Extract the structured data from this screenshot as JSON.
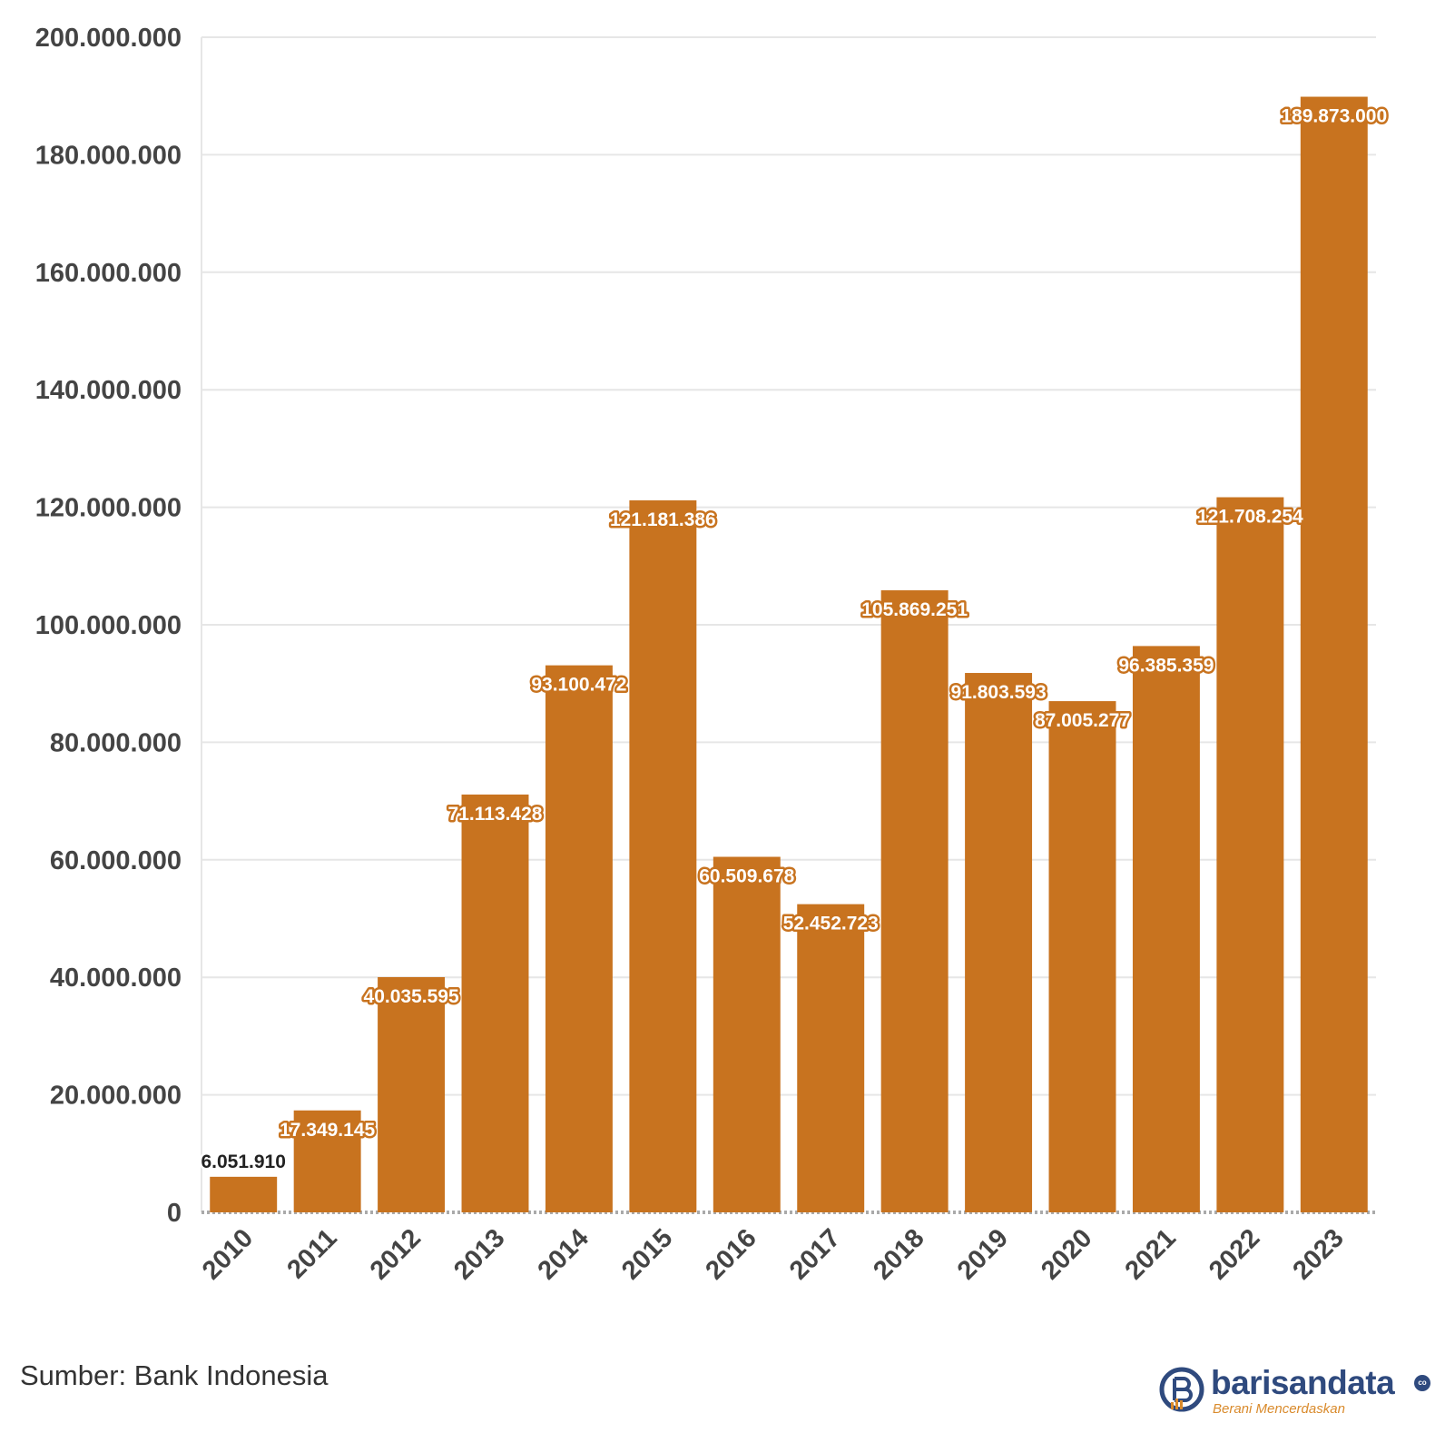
{
  "chart_data": {
    "type": "bar",
    "categories": [
      "2010",
      "2011",
      "2012",
      "2013",
      "2014",
      "2015",
      "2016",
      "2017",
      "2018",
      "2019",
      "2020",
      "2021",
      "2022",
      "2023"
    ],
    "values": [
      6051910,
      17349145,
      40035595,
      71113428,
      93100472,
      121181386,
      60509678,
      52452723,
      105869251,
      91803593,
      87005277,
      96385359,
      121708254,
      189873000
    ],
    "data_labels": [
      "6.051.910",
      "17.349.145",
      "40.035.595",
      "71.113.428",
      "93.100.472",
      "121.181.386",
      "60.509.678",
      "52.452.723",
      "105.869.251",
      "91.803.593",
      "87.005.277",
      "96.385.359",
      "121.708.254",
      "189.873.000"
    ],
    "y_ticks": [
      0,
      20000000,
      40000000,
      60000000,
      80000000,
      100000000,
      120000000,
      140000000,
      160000000,
      180000000,
      200000000
    ],
    "y_tick_labels": [
      "0",
      "20.000.000",
      "40.000.000",
      "60.000.000",
      "80.000.000",
      "100.000.000",
      "120.000.000",
      "140.000.000",
      "160.000.000",
      "180.000.000",
      "200.000.000"
    ],
    "ylim": [
      0,
      200000000
    ],
    "grid": true,
    "bar_color": "#c8731f",
    "title": "",
    "xlabel": "",
    "ylabel": ""
  },
  "footer": {
    "source": "Sumber: Bank Indonesia",
    "logo_name": "barisandata",
    "logo_tagline": "Berani Mencerdaskan",
    "logo_suffix": "co"
  }
}
